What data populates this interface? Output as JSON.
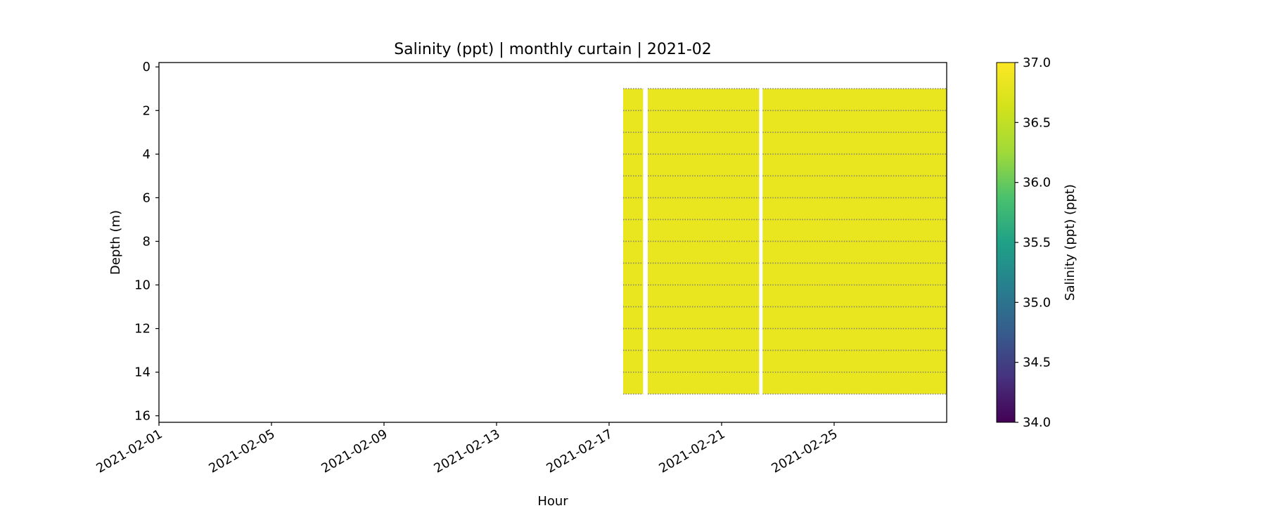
{
  "chart_data": {
    "type": "heatmap",
    "title": "Salinity (ppt) | monthly curtain | 2021-02",
    "xlabel": "Hour",
    "ylabel": "Depth (m)",
    "colorbar_label": "Salinity (ppt) (ppt)",
    "colormap": "viridis",
    "color_range": [
      34.0,
      37.0
    ],
    "colorbar_ticks": [
      "34.0",
      "34.5",
      "35.0",
      "35.5",
      "36.0",
      "36.5",
      "37.0"
    ],
    "x_range": [
      "2021-02-01",
      "2021-02-29"
    ],
    "x_ticks": [
      "2021-02-01",
      "2021-02-05",
      "2021-02-09",
      "2021-02-13",
      "2021-02-17",
      "2021-02-21",
      "2021-02-25"
    ],
    "y_range": [
      16.3,
      -0.2
    ],
    "y_inverted": true,
    "y_ticks": [
      "0",
      "2",
      "4",
      "6",
      "8",
      "10",
      "12",
      "14",
      "16"
    ],
    "data_start": "2021-02-17T12:00",
    "data_end": "2021-02-29T00:00",
    "gaps": [
      [
        "2021-02-18T05:00",
        "2021-02-18T09:00"
      ],
      [
        "2021-02-22T08:00",
        "2021-02-22T11:00"
      ]
    ],
    "surface_depth_m": 1.0,
    "bottom_depth_m": 15.0,
    "sensor_depths_m": [
      1,
      2,
      3,
      4,
      5,
      6,
      7,
      8,
      9,
      10,
      11,
      12,
      13,
      14,
      15
    ],
    "typical_salinity_ppt": 36.85,
    "grid": false
  },
  "colors": {
    "high_salinity": "#e9e51f",
    "low_salinity": "#440154",
    "sensor_marker": "#777777"
  }
}
